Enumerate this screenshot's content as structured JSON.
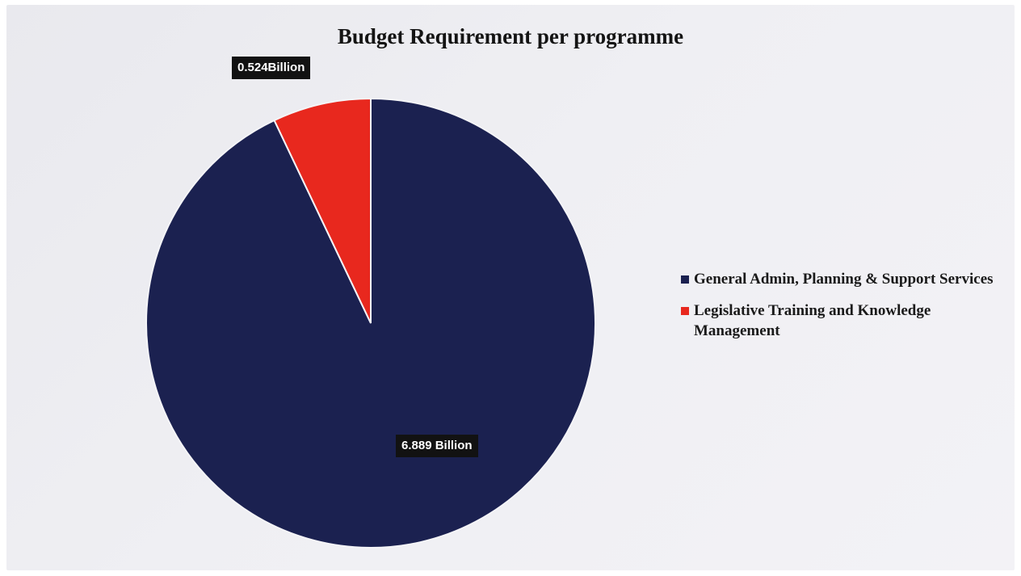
{
  "chart_data": {
    "type": "pie",
    "title": "Budget Requirement per programme",
    "unit": "Billion",
    "legend_position": "right",
    "slices": [
      {
        "label": "General Admin, Planning & Support Services",
        "value": 6.889,
        "data_label": "6.889 Billion",
        "color": "#1b2150"
      },
      {
        "label": "Legislative Training and Knowledge Management",
        "value": 0.524,
        "data_label": "0.524Billion",
        "color": "#e8281e"
      }
    ]
  }
}
